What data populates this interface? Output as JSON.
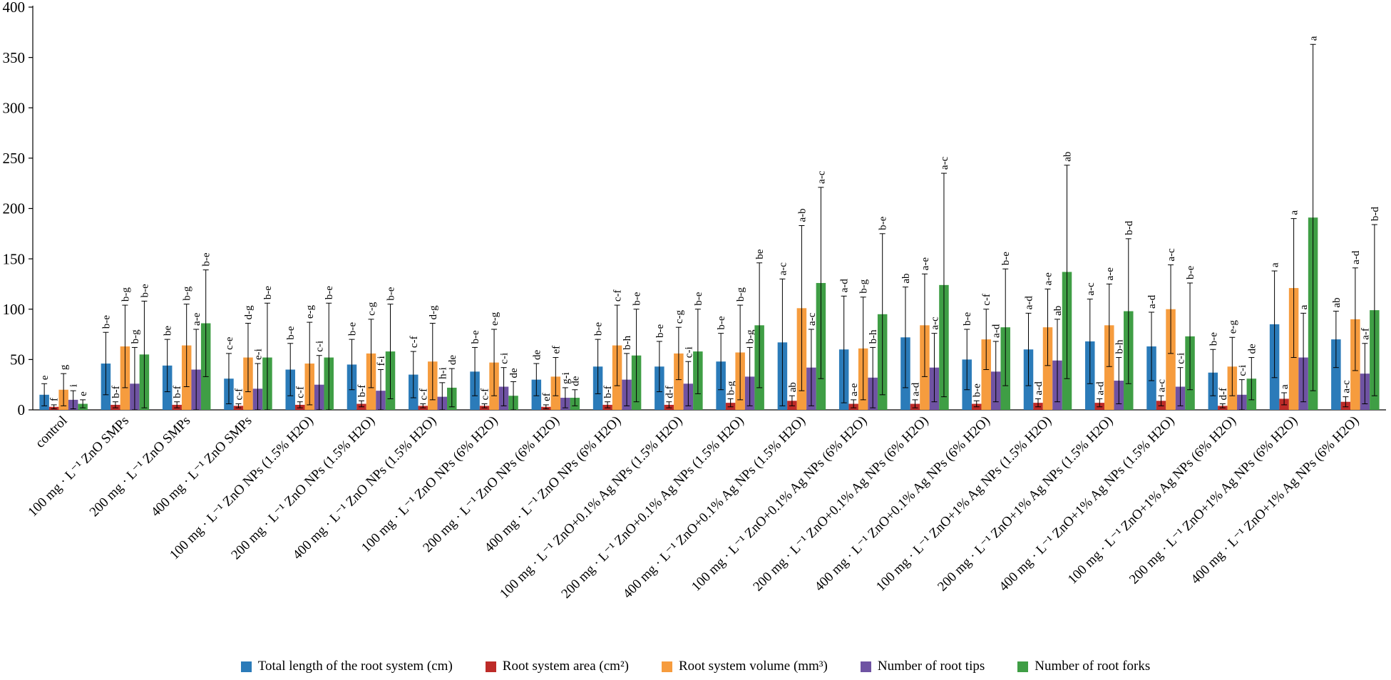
{
  "chart_data": {
    "type": "bar",
    "title": "",
    "xlabel": "",
    "ylabel": "",
    "ylim": [
      0,
      400
    ],
    "yticks": [
      0,
      50,
      100,
      150,
      200,
      250,
      300,
      350,
      400
    ],
    "grid": false,
    "legend_position": "bottom",
    "background": "#ffffff",
    "axis_color": "#000000",
    "error_bars": true,
    "categories": [
      "control",
      "100 mg · L⁻¹ ZnO SMPs",
      "200 mg · L⁻¹ ZnO SMPs",
      "400 mg · L⁻¹ ZnO SMPs",
      "100 mg · L⁻¹ ZnO NPs (1.5% H2O)",
      "200 mg · L⁻¹ ZnO NPs (1.5% H2O)",
      "400 mg · L⁻¹ ZnO NPs (1.5% H2O)",
      "100 mg · L⁻¹ ZnO NPs (6% H2O)",
      "200 mg · L⁻¹ ZnO NPs (6% H2O)",
      "400 mg · L⁻¹ ZnO NPs (6% H2O)",
      "100 mg · L⁻¹ ZnO+0.1% Ag NPs (1.5% H2O)",
      "200 mg · L⁻¹ ZnO+0.1% Ag NPs (1.5% H2O)",
      "400 mg · L⁻¹ ZnO+0.1% Ag NPs (1.5% H2O)",
      "100 mg · L⁻¹ ZnO+0.1% Ag NPs (6% H2O)",
      "200 mg · L⁻¹ ZnO+0.1% Ag NPs (6% H2O)",
      "400 mg · L⁻¹ ZnO+0.1% Ag NPs (6% H2O)",
      "100 mg · L⁻¹ ZnO+1% Ag NPs (1.5% H2O)",
      "200 mg · L⁻¹ ZnO+1% Ag NPs (1.5% H2O)",
      "400 mg · L⁻¹ ZnO+1% Ag NPs (1.5% H2O)",
      "100 mg · L⁻¹ ZnO+1% Ag NPs (6% H2O)",
      "200 mg · L⁻¹ ZnO+1% Ag NPs (6% H2O)",
      "400 mg · L⁻¹ ZnO+1% Ag NPs (6% H2O)"
    ],
    "series": [
      {
        "name": "Total length of the root system (cm)",
        "color": "#2B7BB9",
        "values": [
          15,
          46,
          44,
          31,
          40,
          45,
          35,
          38,
          30,
          43,
          43,
          48,
          67,
          60,
          72,
          50,
          60,
          68,
          63,
          37,
          85,
          70
        ],
        "errors": [
          11,
          31,
          26,
          25,
          26,
          25,
          23,
          24,
          16,
          27,
          25,
          28,
          63,
          53,
          50,
          30,
          36,
          42,
          34,
          23,
          53,
          28
        ],
        "letters": [
          "e",
          "b-e",
          "be",
          "c-e",
          "b-e",
          "b-e",
          "c-f",
          "b-e",
          "de",
          "b-e",
          "b-e",
          "b-e",
          "a-c",
          "a-d",
          "ab",
          "b-e",
          "a-d",
          "a-c",
          "a-d",
          "b-e",
          "a",
          "ab"
        ]
      },
      {
        "name": "Root system area (cm²)",
        "color": "#BD2B28",
        "values": [
          3,
          5,
          5,
          4,
          5,
          6,
          4,
          4,
          3,
          5,
          5,
          7,
          9,
          6,
          6,
          6,
          7,
          7,
          9,
          4,
          11,
          8
        ],
        "errors": [
          2,
          3,
          3,
          2,
          3,
          3,
          2,
          2,
          2,
          3,
          3,
          4,
          5,
          4,
          4,
          3,
          4,
          4,
          5,
          2,
          6,
          5
        ],
        "letters": [
          "f",
          "b-f",
          "b-f",
          "c-f",
          "c-f",
          "b-f",
          "c-f",
          "c-f",
          "ef",
          "b-f",
          "d-f",
          "b-g",
          "ab",
          "a-e",
          "a-d",
          "b-e",
          "a-d",
          "a-d",
          "a-c",
          "d-f",
          "a",
          "a-c"
        ]
      },
      {
        "name": "Root system volume (mm³)",
        "color": "#F69C3E",
        "values": [
          20,
          63,
          64,
          52,
          46,
          56,
          48,
          47,
          33,
          64,
          56,
          57,
          101,
          61,
          84,
          70,
          82,
          84,
          100,
          43,
          121,
          90
        ],
        "errors": [
          16,
          41,
          41,
          34,
          41,
          34,
          38,
          33,
          19,
          40,
          26,
          47,
          82,
          51,
          51,
          30,
          38,
          41,
          44,
          29,
          69,
          51
        ],
        "letters": [
          "g",
          "b-g",
          "b-g",
          "d-g",
          "e-g",
          "c-g",
          "d-g",
          "e-g",
          "ef",
          "c-f",
          "c-g",
          "b-g",
          "a-b",
          "b-g",
          "a-e",
          "c-f",
          "a-e",
          "a-e",
          "a-c",
          "e-g",
          "a",
          "a-d"
        ]
      },
      {
        "name": "Number of root tips",
        "color": "#6F53A3",
        "values": [
          10,
          26,
          40,
          21,
          25,
          19,
          13,
          23,
          12,
          30,
          26,
          33,
          42,
          32,
          42,
          38,
          49,
          29,
          23,
          15,
          52,
          36
        ],
        "errors": [
          9,
          36,
          40,
          25,
          29,
          21,
          14,
          19,
          10,
          26,
          22,
          29,
          38,
          30,
          34,
          30,
          41,
          23,
          19,
          15,
          44,
          30
        ],
        "letters": [
          "i",
          "b-g",
          "a-e",
          "e-i",
          "c-i",
          "f-i",
          "h-i",
          "c-i",
          "g-i",
          "b-h",
          "c-i",
          "b-g",
          "a-c",
          "b-h",
          "a-c",
          "a-d",
          "ab",
          "b-h",
          "c-i",
          "c-i",
          "a",
          "a-f"
        ]
      },
      {
        "name": "Number of root forks",
        "color": "#3F9E45",
        "values": [
          6,
          55,
          86,
          52,
          52,
          58,
          22,
          14,
          12,
          54,
          58,
          84,
          126,
          95,
          124,
          82,
          137,
          98,
          73,
          31,
          191,
          99
        ],
        "errors": [
          4,
          53,
          53,
          54,
          54,
          47,
          19,
          14,
          8,
          46,
          42,
          62,
          95,
          80,
          111,
          58,
          106,
          72,
          53,
          21,
          172,
          85
        ],
        "letters": [
          "e",
          "b-e",
          "b-e",
          "b-e",
          "b-e",
          "b-e",
          "de",
          "de",
          "de",
          "b-e",
          "b-e",
          "be",
          "a-c",
          "b-e",
          "a-c",
          "b-e",
          "ab",
          "b-d",
          "b-e",
          "de",
          "a",
          "b-d"
        ]
      }
    ]
  }
}
